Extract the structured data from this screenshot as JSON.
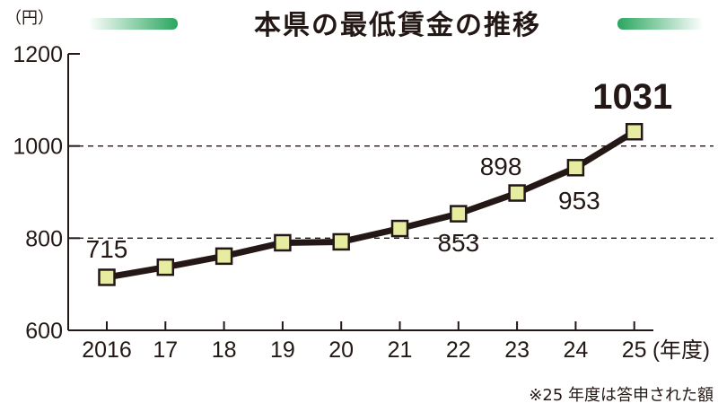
{
  "chart_data": {
    "type": "line",
    "title": "本県の最低賃金の推移",
    "ylabel": "（円）",
    "xlabel": "(年度)",
    "categories": [
      "2016",
      "17",
      "18",
      "19",
      "20",
      "21",
      "22",
      "23",
      "24",
      "25"
    ],
    "series": [
      {
        "values": [
          715,
          737,
          761,
          790,
          792,
          821,
          853,
          898,
          953,
          1031
        ]
      }
    ],
    "data_labels": [
      {
        "index": 0,
        "text": "715",
        "emphasis": false
      },
      {
        "index": 6,
        "text": "853",
        "emphasis": false
      },
      {
        "index": 7,
        "text": "898",
        "emphasis": false
      },
      {
        "index": 8,
        "text": "953",
        "emphasis": false
      },
      {
        "index": 9,
        "text": "1031",
        "emphasis": true
      }
    ],
    "ylim": [
      600,
      1200
    ],
    "yticks": [
      "600",
      "800",
      "1000",
      "1200"
    ],
    "dashed_gridlines": [
      800,
      1000
    ],
    "note": "※25 年度は答申された額",
    "colors": {
      "line": "#231815",
      "marker_fill": "#e6eca0",
      "marker_stroke": "#231815",
      "title_bar": "#2aa65f",
      "gridline": "#231815"
    }
  }
}
